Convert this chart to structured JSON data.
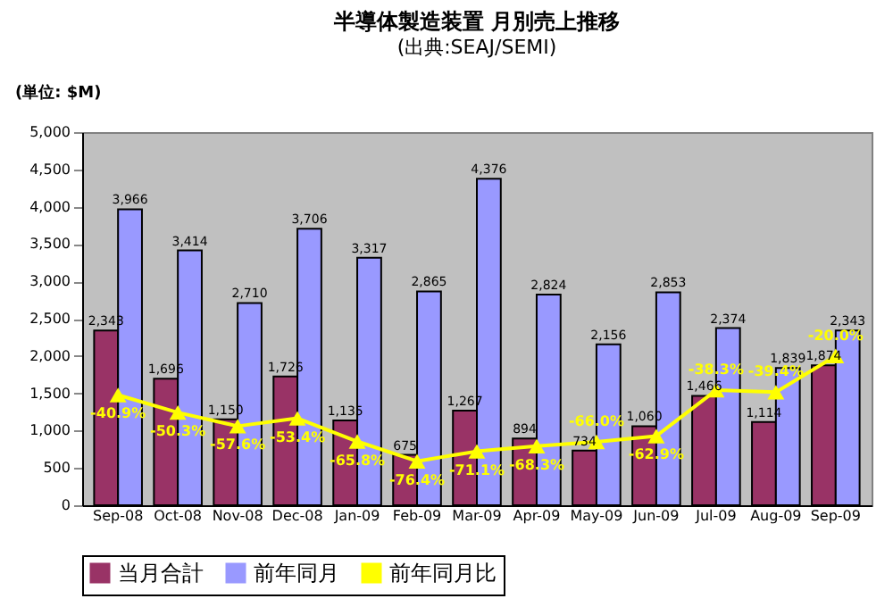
{
  "chart_data": {
    "type": "bar",
    "title": "半導体製造装置 月別売上推移",
    "subtitle": "(出典:SEAJ/SEMI)",
    "ylabel": "(単位: $M)",
    "categories": [
      "Sep-08",
      "Oct-08",
      "Nov-08",
      "Dec-08",
      "Jan-09",
      "Feb-09",
      "Mar-09",
      "Apr-09",
      "May-09",
      "Jun-09",
      "Jul-09",
      "Aug-09",
      "Sep-09"
    ],
    "series": [
      {
        "name": "当月合計",
        "color": "#993366",
        "values": [
          2343,
          1696,
          1150,
          1726,
          1135,
          675,
          1267,
          894,
          734,
          1060,
          1466,
          1114,
          1874
        ],
        "value_labels": [
          "2,343",
          "1,696",
          "1,150",
          "1,726",
          "1,135",
          "675",
          "1,267",
          "894",
          "734",
          "1,060",
          "1,466",
          "1,114",
          "1,874"
        ]
      },
      {
        "name": "前年同月",
        "color": "#9999ff",
        "values": [
          3966,
          3414,
          2710,
          3706,
          3317,
          2865,
          4376,
          2824,
          2156,
          2853,
          2374,
          1839,
          2343
        ],
        "value_labels": [
          "3,966",
          "3,414",
          "2,710",
          "3,706",
          "3,317",
          "2,865",
          "4,376",
          "2,824",
          "2,156",
          "2,853",
          "2,374",
          "1,839",
          "2,343"
        ]
      },
      {
        "name": "前年同月比",
        "type": "line",
        "axis": "y2",
        "color": "#ffff00",
        "marker": "triangle",
        "values": [
          -40.9,
          -50.3,
          -57.6,
          -53.4,
          -65.8,
          -76.4,
          -71.1,
          -68.3,
          -66.0,
          -62.9,
          -38.3,
          -39.4,
          -20.0
        ],
        "value_labels": [
          "-40.9%",
          "-50.3%",
          "-57.6%",
          "-53.4%",
          "-65.8%",
          "-76.4%",
          "-71.1%",
          "-68.3%",
          "-66.0%",
          "-62.9%",
          "-38.3%",
          "-39.4%",
          "-20.0%"
        ]
      }
    ],
    "ylim": [
      0,
      5000
    ],
    "yticks": [
      0,
      500,
      {
        "value": 1000,
        "label": "1,000"
      },
      {
        "value": 1500,
        "label": "1,500"
      },
      {
        "value": 2000,
        "label": "2,000"
      },
      {
        "value": 2500,
        "label": "2,500"
      },
      {
        "value": 3000,
        "label": "3,000"
      },
      {
        "value": 3500,
        "label": "3,500"
      },
      {
        "value": 4000,
        "label": "4,000"
      },
      {
        "value": 4500,
        "label": "4,500"
      },
      {
        "value": 5000,
        "label": "5,000"
      }
    ],
    "y2lim": [
      -100,
      100
    ],
    "grid": false,
    "legend": "bottom"
  }
}
